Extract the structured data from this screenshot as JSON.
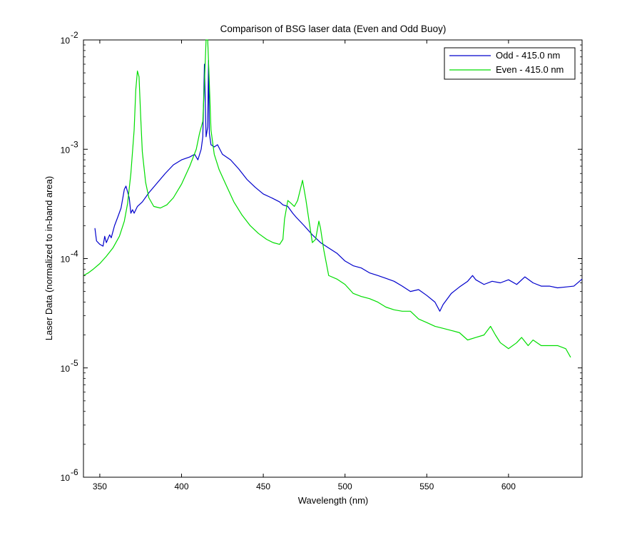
{
  "chart_data": {
    "type": "line",
    "title": "Comparison of BSG laser data (Even and Odd Buoy)",
    "xlabel": "Wavelength (nm)",
    "ylabel": "Laser Data (normalized to in-band area)",
    "xlim": [
      340,
      645
    ],
    "ylim": [
      1e-06,
      0.01
    ],
    "yscale": "log",
    "grid": false,
    "legend_position": "top-right",
    "x_ticks": [
      350,
      400,
      450,
      500,
      550,
      600
    ],
    "y_ticks": [
      {
        "value": 1e-06,
        "base": "10",
        "exp": "-6"
      },
      {
        "value": 1e-05,
        "base": "10",
        "exp": "-5"
      },
      {
        "value": 0.0001,
        "base": "10",
        "exp": "-4"
      },
      {
        "value": 0.001,
        "base": "10",
        "exp": "-3"
      },
      {
        "value": 0.01,
        "base": "10",
        "exp": "-2"
      }
    ],
    "series": [
      {
        "name": "Odd - 415.0 nm",
        "color": "#0000cc",
        "points": [
          [
            347,
            0.00019
          ],
          [
            348,
            0.000145
          ],
          [
            350,
            0.000135
          ],
          [
            352,
            0.00013
          ],
          [
            353,
            0.00016
          ],
          [
            354,
            0.00014
          ],
          [
            356,
            0.000165
          ],
          [
            357,
            0.000155
          ],
          [
            359,
            0.0002
          ],
          [
            361,
            0.00024
          ],
          [
            363,
            0.00029
          ],
          [
            365,
            0.00043
          ],
          [
            366,
            0.00046
          ],
          [
            368,
            0.00036
          ],
          [
            369,
            0.00026
          ],
          [
            370,
            0.00028
          ],
          [
            371,
            0.00026
          ],
          [
            373,
            0.0003
          ],
          [
            376,
            0.00033
          ],
          [
            380,
            0.0004
          ],
          [
            385,
            0.00049
          ],
          [
            390,
            0.0006
          ],
          [
            395,
            0.00072
          ],
          [
            400,
            0.0008
          ],
          [
            405,
            0.00085
          ],
          [
            408,
            0.0009
          ],
          [
            410,
            0.0008
          ],
          [
            412,
            0.001
          ],
          [
            413,
            0.0013
          ],
          [
            414,
            0.006
          ],
          [
            415,
            0.0013
          ],
          [
            416,
            0.0016
          ],
          [
            416.5,
            0.0065
          ],
          [
            417,
            0.0014
          ],
          [
            418,
            0.0011
          ],
          [
            420,
            0.00105
          ],
          [
            422,
            0.0011
          ],
          [
            425,
            0.0009
          ],
          [
            430,
            0.0008
          ],
          [
            435,
            0.00066
          ],
          [
            440,
            0.00053
          ],
          [
            445,
            0.00045
          ],
          [
            450,
            0.00039
          ],
          [
            455,
            0.00036
          ],
          [
            460,
            0.00033
          ],
          [
            462,
            0.00031
          ],
          [
            465,
            0.0003
          ],
          [
            468,
            0.00026
          ],
          [
            470,
            0.00024
          ],
          [
            475,
            0.0002
          ],
          [
            480,
            0.000165
          ],
          [
            485,
            0.00014
          ],
          [
            490,
            0.000125
          ],
          [
            495,
            0.000112
          ],
          [
            500,
            9.5e-05
          ],
          [
            505,
            8.6e-05
          ],
          [
            510,
            8.2e-05
          ],
          [
            515,
            7.4e-05
          ],
          [
            520,
            7e-05
          ],
          [
            525,
            6.6e-05
          ],
          [
            530,
            6.2e-05
          ],
          [
            535,
            5.6e-05
          ],
          [
            540,
            5e-05
          ],
          [
            545,
            5.2e-05
          ],
          [
            550,
            4.6e-05
          ],
          [
            555,
            4e-05
          ],
          [
            558,
            3.3e-05
          ],
          [
            560,
            3.8e-05
          ],
          [
            565,
            4.8e-05
          ],
          [
            570,
            5.5e-05
          ],
          [
            575,
            6.2e-05
          ],
          [
            578,
            7e-05
          ],
          [
            580,
            6.4e-05
          ],
          [
            585,
            5.8e-05
          ],
          [
            590,
            6.2e-05
          ],
          [
            595,
            6e-05
          ],
          [
            600,
            6.4e-05
          ],
          [
            605,
            5.8e-05
          ],
          [
            610,
            6.8e-05
          ],
          [
            615,
            6e-05
          ],
          [
            620,
            5.6e-05
          ],
          [
            625,
            5.6e-05
          ],
          [
            630,
            5.4e-05
          ],
          [
            635,
            5.5e-05
          ],
          [
            640,
            5.6e-05
          ],
          [
            645,
            6.5e-05
          ]
        ]
      },
      {
        "name": "Even - 415.0 nm",
        "color": "#00dd00",
        "points": [
          [
            340,
            7e-05
          ],
          [
            343,
            7.4e-05
          ],
          [
            346,
            8e-05
          ],
          [
            350,
            9e-05
          ],
          [
            354,
            0.000105
          ],
          [
            358,
            0.000125
          ],
          [
            362,
            0.00016
          ],
          [
            365,
            0.00022
          ],
          [
            367,
            0.00032
          ],
          [
            369,
            0.0006
          ],
          [
            371,
            0.0015
          ],
          [
            372,
            0.0035
          ],
          [
            373,
            0.0052
          ],
          [
            374,
            0.0046
          ],
          [
            375,
            0.002
          ],
          [
            376,
            0.00095
          ],
          [
            378,
            0.0005
          ],
          [
            380,
            0.00036
          ],
          [
            383,
            0.0003
          ],
          [
            387,
            0.00029
          ],
          [
            391,
            0.00031
          ],
          [
            395,
            0.00036
          ],
          [
            400,
            0.00048
          ],
          [
            405,
            0.0007
          ],
          [
            409,
            0.001
          ],
          [
            411,
            0.0014
          ],
          [
            413,
            0.0018
          ],
          [
            414,
            0.004
          ],
          [
            415,
            0.01
          ],
          [
            416,
            0.01
          ],
          [
            417,
            0.004
          ],
          [
            418,
            0.0015
          ],
          [
            420,
            0.0009
          ],
          [
            423,
            0.00065
          ],
          [
            427,
            0.00048
          ],
          [
            432,
            0.00033
          ],
          [
            437,
            0.00025
          ],
          [
            442,
            0.0002
          ],
          [
            447,
            0.00017
          ],
          [
            452,
            0.00015
          ],
          [
            456,
            0.00014
          ],
          [
            460,
            0.000135
          ],
          [
            462,
            0.00015
          ],
          [
            463,
            0.00023
          ],
          [
            465,
            0.00034
          ],
          [
            467,
            0.00032
          ],
          [
            469,
            0.0003
          ],
          [
            471,
            0.00034
          ],
          [
            473,
            0.00045
          ],
          [
            474,
            0.00052
          ],
          [
            476,
            0.00035
          ],
          [
            478,
            0.00022
          ],
          [
            480,
            0.00014
          ],
          [
            482,
            0.00015
          ],
          [
            484,
            0.00022
          ],
          [
            485,
            0.00019
          ],
          [
            487,
            0.00012
          ],
          [
            490,
            7e-05
          ],
          [
            495,
            6.5e-05
          ],
          [
            500,
            5.8e-05
          ],
          [
            505,
            4.8e-05
          ],
          [
            510,
            4.5e-05
          ],
          [
            515,
            4.3e-05
          ],
          [
            520,
            4e-05
          ],
          [
            525,
            3.6e-05
          ],
          [
            530,
            3.4e-05
          ],
          [
            535,
            3.3e-05
          ],
          [
            540,
            3.3e-05
          ],
          [
            545,
            2.8e-05
          ],
          [
            550,
            2.6e-05
          ],
          [
            555,
            2.4e-05
          ],
          [
            560,
            2.3e-05
          ],
          [
            565,
            2.2e-05
          ],
          [
            570,
            2.1e-05
          ],
          [
            575,
            1.8e-05
          ],
          [
            580,
            1.9e-05
          ],
          [
            585,
            2e-05
          ],
          [
            589,
            2.4e-05
          ],
          [
            592,
            2e-05
          ],
          [
            595,
            1.7e-05
          ],
          [
            600,
            1.5e-05
          ],
          [
            605,
            1.7e-05
          ],
          [
            608,
            1.9e-05
          ],
          [
            612,
            1.6e-05
          ],
          [
            615,
            1.8e-05
          ],
          [
            620,
            1.6e-05
          ],
          [
            625,
            1.6e-05
          ],
          [
            630,
            1.6e-05
          ],
          [
            635,
            1.5e-05
          ],
          [
            638,
            1.25e-05
          ]
        ]
      }
    ]
  }
}
